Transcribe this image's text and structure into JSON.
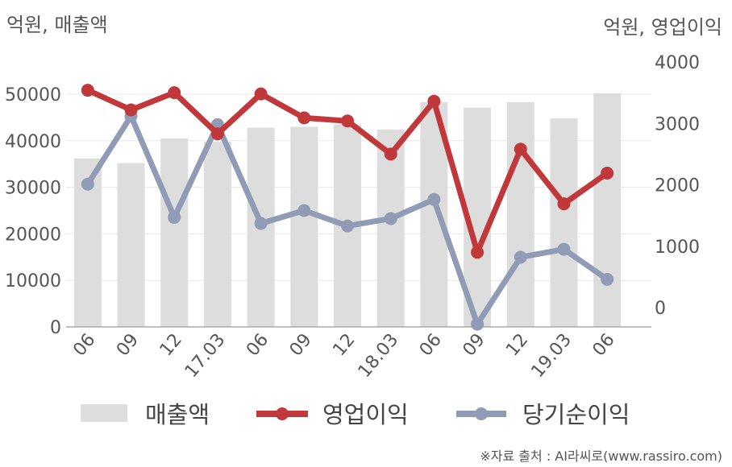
{
  "chart_data": {
    "type": "bar+line",
    "left_axis_unit": "억원, 매출액",
    "right_axis_unit": "억원, 영업이익",
    "categories": [
      "06",
      "09",
      "12",
      "17.03",
      "06",
      "09",
      "12",
      "18.03",
      "06",
      "09",
      "12",
      "19.03",
      "06"
    ],
    "left_ticks": [
      "0",
      "10000",
      "20000",
      "30000",
      "40000",
      "50000"
    ],
    "right_ticks": [
      "0",
      "1000",
      "2000",
      "3000",
      "4000"
    ],
    "ylim_left": [
      0,
      50000
    ],
    "ylim_right": [
      -300,
      4000
    ],
    "grid": true,
    "legend_position": "bottom",
    "series": [
      {
        "name": "매출액",
        "type": "bar",
        "axis": "left",
        "color": "#dddddd",
        "values": [
          36200,
          35200,
          40500,
          39800,
          42800,
          43000,
          43500,
          42400,
          48300,
          47100,
          48300,
          44800,
          50200
        ]
      },
      {
        "name": "영업이익",
        "type": "line",
        "axis": "right",
        "color": "#c0383a",
        "values": [
          3540,
          3220,
          3500,
          2830,
          3480,
          3090,
          3040,
          2500,
          3360,
          900,
          2580,
          1690,
          2190
        ]
      },
      {
        "name": "당기순이익",
        "type": "line",
        "axis": "right",
        "color": "#909bb5",
        "values": [
          2010,
          3120,
          1470,
          2980,
          1370,
          1580,
          1330,
          1450,
          1760,
          -270,
          820,
          950,
          460
        ]
      }
    ],
    "source": "※자료 출처 : AI라씨로(www.rassiro.com)"
  }
}
